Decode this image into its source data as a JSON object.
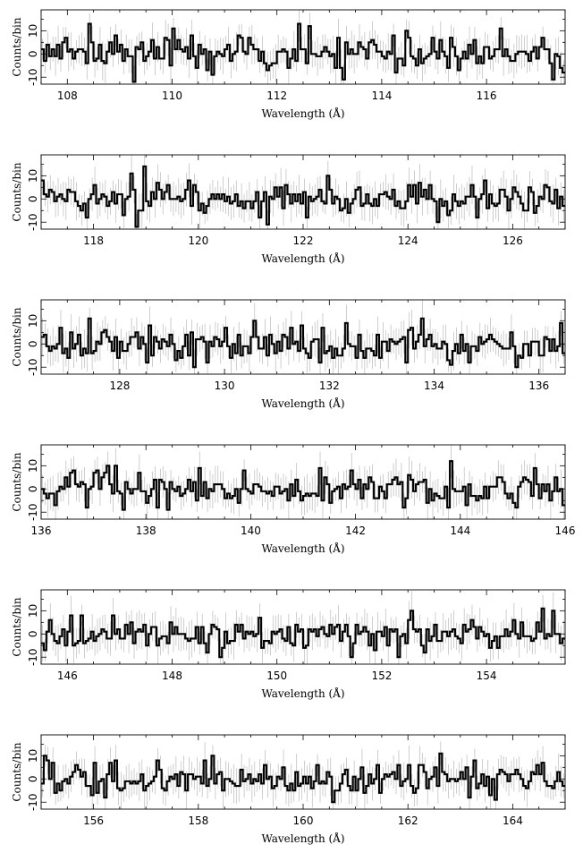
{
  "chart_data": [
    {
      "type": "line",
      "style": "histogram-step with error bars",
      "xlabel": "Wavelength (Å)",
      "ylabel": "Counts/bin",
      "xlim": [
        107.5,
        117.5
      ],
      "ylim": [
        -13,
        19
      ],
      "xticks": [
        108,
        110,
        112,
        114,
        116
      ],
      "yticks": [
        -10,
        0,
        10
      ],
      "bin_width": 0.05,
      "grid": false,
      "seed": 1101,
      "features": [
        {
          "x": 108.42,
          "value": 13
        },
        {
          "x": 109.25,
          "value": -12
        },
        {
          "x": 110.02,
          "value": 11
        },
        {
          "x": 110.75,
          "value": -9
        },
        {
          "x": 112.42,
          "value": 13
        },
        {
          "x": 112.62,
          "value": 12
        },
        {
          "x": 113.25,
          "value": -11
        },
        {
          "x": 114.45,
          "value": 10
        },
        {
          "x": 116.25,
          "value": 11
        },
        {
          "x": 117.3,
          "value": -11
        }
      ]
    },
    {
      "type": "line",
      "style": "histogram-step with error bars",
      "xlabel": "Wavelength (Å)",
      "ylabel": "Counts/bin",
      "xlim": [
        117.0,
        127.0
      ],
      "ylim": [
        -13,
        19
      ],
      "xticks": [
        118,
        120,
        122,
        124,
        126
      ],
      "yticks": [
        -10,
        0,
        10
      ],
      "bin_width": 0.05,
      "grid": false,
      "seed": 2202,
      "features": [
        {
          "x": 118.72,
          "value": 11
        },
        {
          "x": 118.98,
          "value": 14
        },
        {
          "x": 118.82,
          "value": -12
        },
        {
          "x": 121.35,
          "value": -11
        },
        {
          "x": 122.45,
          "value": 10
        },
        {
          "x": 124.6,
          "value": -10
        },
        {
          "x": 124.4,
          "value": 6
        }
      ]
    },
    {
      "type": "line",
      "style": "histogram-step with error bars",
      "xlabel": "Wavelength (Å)",
      "ylabel": "Counts/bin",
      "xlim": [
        126.5,
        136.5
      ],
      "ylim": [
        -13,
        19
      ],
      "xticks": [
        128,
        130,
        132,
        134,
        136
      ],
      "yticks": [
        -10,
        0,
        10
      ],
      "bin_width": 0.05,
      "grid": false,
      "seed": 3303,
      "features": [
        {
          "x": 127.4,
          "value": 11
        },
        {
          "x": 128.6,
          "value": 8
        },
        {
          "x": 129.45,
          "value": -10
        },
        {
          "x": 130.55,
          "value": 10
        },
        {
          "x": 132.35,
          "value": 9
        },
        {
          "x": 133.78,
          "value": 11
        },
        {
          "x": 134.3,
          "value": -9
        },
        {
          "x": 135.55,
          "value": -10
        },
        {
          "x": 136.45,
          "value": 9
        }
      ]
    },
    {
      "type": "line",
      "style": "histogram-step with error bars",
      "xlabel": "Wavelength (Å)",
      "ylabel": "Counts/bin",
      "xlim": [
        136.0,
        146.0
      ],
      "ylim": [
        -13,
        19
      ],
      "xticks": [
        136,
        138,
        140,
        142,
        144,
        146
      ],
      "yticks": [
        -10,
        0,
        10
      ],
      "bin_width": 0.05,
      "grid": false,
      "seed": 4404,
      "features": [
        {
          "x": 137.25,
          "value": 10
        },
        {
          "x": 137.4,
          "value": 10
        },
        {
          "x": 137.6,
          "value": -9
        },
        {
          "x": 138.45,
          "value": -9
        },
        {
          "x": 139.0,
          "value": 9
        },
        {
          "x": 141.3,
          "value": 9
        },
        {
          "x": 142.9,
          "value": -8
        },
        {
          "x": 143.82,
          "value": 12
        },
        {
          "x": 145.4,
          "value": 9
        }
      ]
    },
    {
      "type": "line",
      "style": "histogram-step with error bars",
      "xlabel": "Wavelength (Å)",
      "ylabel": "Counts/bin",
      "xlim": [
        145.5,
        155.5
      ],
      "ylim": [
        -13,
        19
      ],
      "xticks": [
        146,
        148,
        150,
        152,
        154
      ],
      "yticks": [
        -10,
        0,
        10
      ],
      "bin_width": 0.05,
      "grid": false,
      "seed": 5505,
      "features": [
        {
          "x": 148.95,
          "value": 8
        },
        {
          "x": 148.9,
          "value": -10
        },
        {
          "x": 151.4,
          "value": -10
        },
        {
          "x": 152.3,
          "value": -10
        },
        {
          "x": 152.6,
          "value": 10
        },
        {
          "x": 155.1,
          "value": 11
        },
        {
          "x": 155.25,
          "value": 10
        }
      ]
    },
    {
      "type": "line",
      "style": "histogram-step with error bars",
      "xlabel": "Wavelength (Å)",
      "ylabel": "Counts/bin",
      "xlim": [
        155.0,
        165.0
      ],
      "ylim": [
        -13,
        19
      ],
      "xticks": [
        156,
        158,
        160,
        162,
        164
      ],
      "yticks": [
        -10,
        0,
        10
      ],
      "bin_width": 0.05,
      "grid": false,
      "seed": 6606,
      "features": [
        {
          "x": 155.05,
          "value": 10
        },
        {
          "x": 156.45,
          "value": 8
        },
        {
          "x": 158.25,
          "value": 10
        },
        {
          "x": 160.6,
          "value": -10
        },
        {
          "x": 162.62,
          "value": 11
        },
        {
          "x": 163.65,
          "value": -9
        },
        {
          "x": 164.6,
          "value": 7
        }
      ]
    }
  ]
}
